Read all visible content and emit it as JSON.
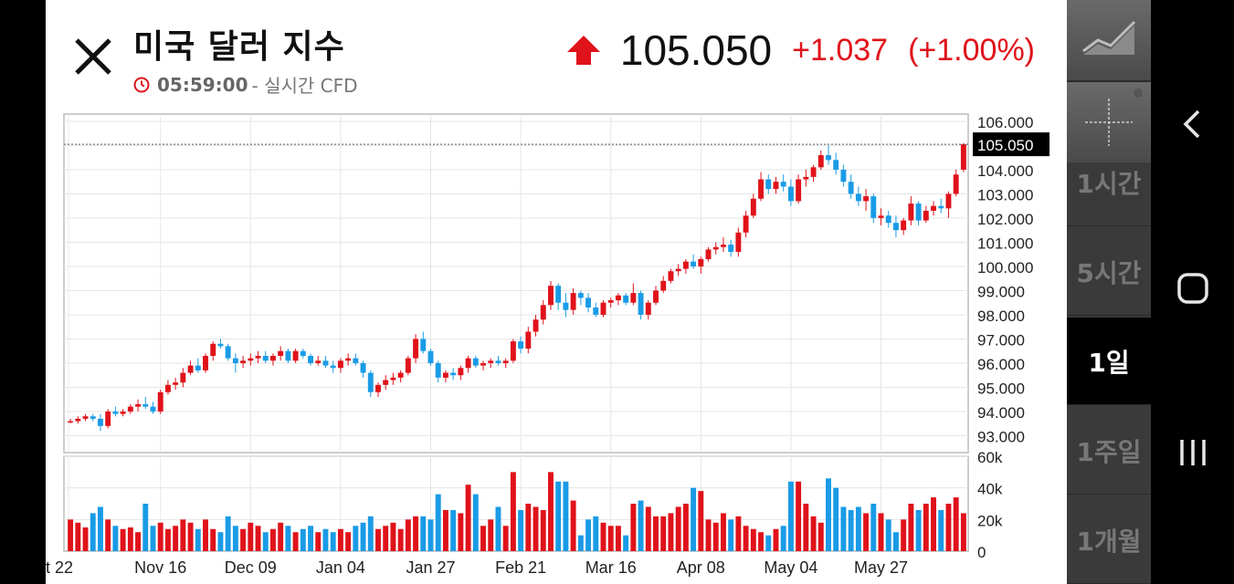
{
  "header": {
    "title": "미국 달러 지수",
    "time": "05:59:00",
    "sub_suffix": "- 실시간 CFD",
    "price": "105.050",
    "change": "+1.037",
    "change_pct": "(+1.00%)"
  },
  "colors": {
    "up": "#e0121a",
    "down": "#1a9be6",
    "background": "#ffffff",
    "grid": "#e6e6e6"
  },
  "timeframes": [
    "1시간",
    "5시간",
    "1일",
    "1주일",
    "1개월"
  ],
  "active_timeframe": "1일",
  "price_axis_labels": [
    "106.000",
    "104.000",
    "103.000",
    "102.000",
    "101.000",
    "100.000",
    "99.000",
    "98.000",
    "97.000",
    "96.000",
    "95.000",
    "94.000",
    "93.000"
  ],
  "current_price_tag": "105.050",
  "volume_axis_labels": [
    "60k",
    "40k",
    "20k",
    "0"
  ],
  "date_labels": [
    "t 22",
    "Nov 16",
    "Dec 09",
    "Jan 04",
    "Jan 27",
    "Feb 21",
    "Mar 16",
    "Apr 08",
    "May 04",
    "May 27"
  ],
  "icons": {
    "close": "close-icon",
    "clock": "clock-icon",
    "up_arrow": "up-arrow-icon",
    "chart_type": "line-chart-icon",
    "crosshair": "crosshair-icon",
    "back": "back-icon",
    "home": "home-icon",
    "recents": "recents-icon"
  },
  "chart_data": {
    "type": "candlestick",
    "price_range": [
      92.3,
      106.3
    ],
    "volume_range": [
      0,
      60000
    ],
    "current_price": 105.05,
    "candles": [
      [
        93.6,
        93.7,
        93.5,
        93.6,
        20000
      ],
      [
        93.6,
        93.8,
        93.5,
        93.7,
        18000
      ],
      [
        93.7,
        93.9,
        93.6,
        93.8,
        15000
      ],
      [
        93.8,
        93.9,
        93.6,
        93.7,
        24000
      ],
      [
        93.7,
        93.9,
        93.2,
        93.4,
        28000
      ],
      [
        93.4,
        94.1,
        93.3,
        94.0,
        20000
      ],
      [
        94.0,
        94.2,
        93.8,
        93.9,
        16000
      ],
      [
        93.9,
        94.1,
        93.8,
        94.0,
        14000
      ],
      [
        94.0,
        94.3,
        93.9,
        94.2,
        15000
      ],
      [
        94.2,
        94.5,
        94.0,
        94.3,
        12000
      ],
      [
        94.3,
        94.6,
        94.1,
        94.2,
        30000
      ],
      [
        94.2,
        94.4,
        93.9,
        94.0,
        16000
      ],
      [
        94.0,
        94.9,
        93.9,
        94.8,
        18000
      ],
      [
        94.8,
        95.3,
        94.7,
        95.1,
        14000
      ],
      [
        95.1,
        95.4,
        94.9,
        95.2,
        16000
      ],
      [
        95.2,
        95.8,
        95.0,
        95.6,
        20000
      ],
      [
        95.6,
        96.1,
        95.5,
        95.9,
        18000
      ],
      [
        95.9,
        96.2,
        95.6,
        95.7,
        14000
      ],
      [
        95.7,
        96.4,
        95.6,
        96.3,
        20000
      ],
      [
        96.3,
        96.9,
        96.1,
        96.8,
        14000
      ],
      [
        96.8,
        97.0,
        96.6,
        96.7,
        12000
      ],
      [
        96.7,
        96.8,
        96.1,
        96.2,
        22000
      ],
      [
        96.2,
        96.4,
        95.6,
        96.0,
        16000
      ],
      [
        96.0,
        96.3,
        95.8,
        96.1,
        14000
      ],
      [
        96.1,
        96.4,
        95.9,
        96.2,
        18000
      ],
      [
        96.2,
        96.5,
        96.0,
        96.3,
        16000
      ],
      [
        96.3,
        96.5,
        96.0,
        96.1,
        12000
      ],
      [
        96.1,
        96.4,
        95.9,
        96.3,
        14000
      ],
      [
        96.3,
        96.7,
        96.1,
        96.5,
        18000
      ],
      [
        96.5,
        96.6,
        96.0,
        96.1,
        16000
      ],
      [
        96.1,
        96.6,
        96.0,
        96.5,
        12000
      ],
      [
        96.5,
        96.6,
        96.2,
        96.3,
        14000
      ],
      [
        96.3,
        96.4,
        95.9,
        96.0,
        16000
      ],
      [
        96.0,
        96.3,
        95.9,
        96.1,
        12000
      ],
      [
        96.1,
        96.3,
        95.8,
        95.9,
        14000
      ],
      [
        95.9,
        96.1,
        95.6,
        95.8,
        12000
      ],
      [
        95.8,
        96.2,
        95.6,
        96.1,
        14000
      ],
      [
        96.1,
        96.4,
        95.9,
        96.2,
        12000
      ],
      [
        96.2,
        96.4,
        95.9,
        96.0,
        16000
      ],
      [
        96.0,
        96.1,
        95.4,
        95.6,
        18000
      ],
      [
        95.6,
        95.7,
        94.6,
        94.8,
        22000
      ],
      [
        94.8,
        95.2,
        94.6,
        95.1,
        14000
      ],
      [
        95.1,
        95.5,
        94.9,
        95.3,
        16000
      ],
      [
        95.3,
        95.6,
        95.1,
        95.4,
        18000
      ],
      [
        95.4,
        95.7,
        95.2,
        95.6,
        14000
      ],
      [
        95.6,
        96.3,
        95.5,
        96.2,
        20000
      ],
      [
        96.2,
        97.2,
        96.0,
        97.0,
        22000
      ],
      [
        97.0,
        97.3,
        96.4,
        96.5,
        22000
      ],
      [
        96.5,
        96.6,
        95.9,
        96.0,
        20000
      ],
      [
        96.0,
        96.1,
        95.2,
        95.4,
        36000
      ],
      [
        95.4,
        95.7,
        95.2,
        95.6,
        26000
      ],
      [
        95.6,
        95.8,
        95.3,
        95.5,
        26000
      ],
      [
        95.5,
        95.9,
        95.3,
        95.8,
        24000
      ],
      [
        95.8,
        96.3,
        95.6,
        96.2,
        42000
      ],
      [
        96.2,
        96.3,
        95.8,
        95.9,
        36000
      ],
      [
        95.9,
        96.1,
        95.7,
        96.0,
        16000
      ],
      [
        96.0,
        96.2,
        95.8,
        96.1,
        20000
      ],
      [
        96.1,
        96.3,
        95.9,
        96.0,
        28000
      ],
      [
        96.0,
        96.2,
        95.8,
        96.1,
        16000
      ],
      [
        96.1,
        97.0,
        96.0,
        96.9,
        50000
      ],
      [
        96.9,
        97.1,
        96.4,
        96.6,
        26000
      ],
      [
        96.6,
        97.5,
        96.4,
        97.3,
        30000
      ],
      [
        97.3,
        98.0,
        97.1,
        97.8,
        28000
      ],
      [
        97.8,
        98.6,
        97.6,
        98.4,
        26000
      ],
      [
        98.4,
        99.4,
        98.2,
        99.2,
        50000
      ],
      [
        99.2,
        99.3,
        98.2,
        98.5,
        44000
      ],
      [
        98.5,
        98.9,
        97.9,
        98.2,
        44000
      ],
      [
        98.2,
        99.1,
        98.0,
        98.9,
        32000
      ],
      [
        98.9,
        99.0,
        98.4,
        98.7,
        10000
      ],
      [
        98.7,
        98.9,
        98.1,
        98.3,
        20000
      ],
      [
        98.3,
        98.5,
        97.9,
        98.0,
        22000
      ],
      [
        98.0,
        98.6,
        97.9,
        98.5,
        18000
      ],
      [
        98.5,
        98.7,
        98.3,
        98.6,
        16000
      ],
      [
        98.6,
        98.9,
        98.4,
        98.8,
        16000
      ],
      [
        98.8,
        98.9,
        98.4,
        98.5,
        10000
      ],
      [
        98.5,
        99.3,
        98.4,
        98.9,
        30000
      ],
      [
        98.9,
        99.0,
        97.8,
        98.0,
        32000
      ],
      [
        98.0,
        98.6,
        97.8,
        98.5,
        28000
      ],
      [
        98.5,
        99.2,
        98.4,
        99.0,
        22000
      ],
      [
        99.0,
        99.6,
        98.9,
        99.4,
        22000
      ],
      [
        99.4,
        99.9,
        99.3,
        99.8,
        24000
      ],
      [
        99.8,
        100.1,
        99.6,
        99.9,
        28000
      ],
      [
        99.9,
        100.3,
        99.7,
        100.2,
        30000
      ],
      [
        100.2,
        100.5,
        99.9,
        100.0,
        40000
      ],
      [
        100.0,
        100.4,
        99.7,
        100.3,
        38000
      ],
      [
        100.3,
        100.8,
        100.2,
        100.7,
        20000
      ],
      [
        100.7,
        101.0,
        100.5,
        100.8,
        18000
      ],
      [
        100.8,
        101.2,
        100.6,
        100.9,
        24000
      ],
      [
        100.9,
        101.1,
        100.4,
        100.6,
        20000
      ],
      [
        100.6,
        101.6,
        100.4,
        101.4,
        22000
      ],
      [
        101.4,
        102.3,
        101.2,
        102.1,
        16000
      ],
      [
        102.1,
        103.0,
        102.0,
        102.8,
        14000
      ],
      [
        102.8,
        103.9,
        102.7,
        103.6,
        12000
      ],
      [
        103.6,
        103.8,
        103.0,
        103.2,
        10000
      ],
      [
        103.2,
        103.7,
        103.0,
        103.5,
        14000
      ],
      [
        103.5,
        103.8,
        103.1,
        103.3,
        16000
      ],
      [
        103.3,
        103.6,
        102.5,
        102.7,
        44000
      ],
      [
        102.7,
        103.8,
        102.6,
        103.6,
        44000
      ],
      [
        103.6,
        104.0,
        103.3,
        103.7,
        30000
      ],
      [
        103.7,
        104.2,
        103.5,
        104.1,
        22000
      ],
      [
        104.1,
        104.8,
        104.0,
        104.6,
        18000
      ],
      [
        104.6,
        105.0,
        104.2,
        104.4,
        46000
      ],
      [
        104.4,
        104.7,
        103.8,
        104.0,
        40000
      ],
      [
        104.0,
        104.2,
        103.3,
        103.5,
        28000
      ],
      [
        103.5,
        103.8,
        102.8,
        103.0,
        26000
      ],
      [
        103.0,
        103.3,
        102.5,
        102.7,
        28000
      ],
      [
        102.7,
        103.2,
        102.3,
        102.9,
        24000
      ],
      [
        102.9,
        103.0,
        101.8,
        102.0,
        30000
      ],
      [
        102.0,
        102.4,
        101.7,
        102.1,
        24000
      ],
      [
        102.1,
        102.3,
        101.6,
        101.8,
        20000
      ],
      [
        101.8,
        102.1,
        101.2,
        101.5,
        12000
      ],
      [
        101.5,
        102.0,
        101.3,
        101.9,
        20000
      ],
      [
        101.9,
        102.9,
        101.7,
        102.6,
        30000
      ],
      [
        102.6,
        102.7,
        101.7,
        101.9,
        26000
      ],
      [
        101.9,
        102.5,
        101.8,
        102.3,
        30000
      ],
      [
        102.3,
        102.7,
        102.1,
        102.5,
        34000
      ],
      [
        102.5,
        102.8,
        102.2,
        102.4,
        26000
      ],
      [
        102.4,
        103.1,
        102.0,
        103.0,
        30000
      ],
      [
        103.0,
        104.0,
        102.9,
        103.8,
        34000
      ],
      [
        104.0,
        105.1,
        103.9,
        105.05,
        24000
      ]
    ]
  }
}
